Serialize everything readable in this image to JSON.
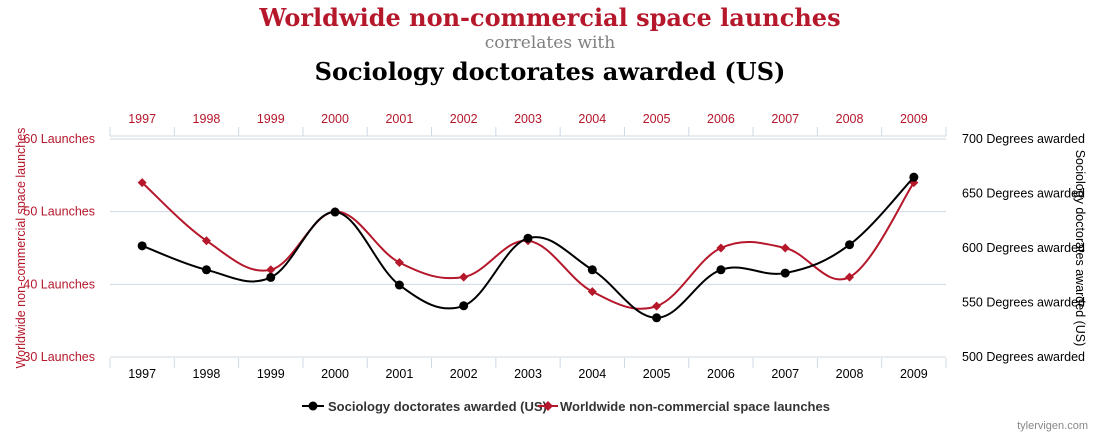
{
  "title_top": "Worldwide non-commercial space launches",
  "title_mid": "correlates with",
  "title_bottom": "Sociology doctorates awarded (US)",
  "watermark": "tylervigen.com",
  "colors": {
    "launches": "#b5172b",
    "doctorates": "#000000",
    "grid": "#cfd8e3",
    "mid_text": "#808080"
  },
  "chart_data": {
    "type": "line",
    "x": [
      "1997",
      "1998",
      "1999",
      "2000",
      "2001",
      "2002",
      "2003",
      "2004",
      "2005",
      "2006",
      "2007",
      "2008",
      "2009"
    ],
    "series": [
      {
        "name": "Sociology doctorates awarded (US)",
        "axis": "right",
        "color": "#000000",
        "marker": "circle",
        "values": [
          602,
          580,
          573,
          633,
          566,
          547,
          609,
          580,
          536,
          580,
          577,
          603,
          665
        ]
      },
      {
        "name": "Worldwide non-commercial space launches",
        "axis": "left",
        "color": "#b5172b",
        "marker": "diamond",
        "values": [
          54,
          46,
          42,
          50,
          43,
          41,
          46,
          39,
          37,
          45,
          45,
          41,
          54
        ]
      }
    ],
    "left_axis": {
      "label": "Worldwide non-commercial space launches",
      "ylim": [
        30,
        60
      ],
      "ticks": [
        30,
        40,
        50,
        60
      ],
      "tick_labels": [
        "30 Launches",
        "40 Launches",
        "50 Launches",
        "60 Launches"
      ]
    },
    "right_axis": {
      "label": "Sociology doctorates awarded (US)",
      "ylim": [
        500,
        700
      ],
      "ticks": [
        500,
        550,
        600,
        650,
        700
      ],
      "tick_labels": [
        "500 Degrees awarded",
        "550 Degrees awarded",
        "600 Degrees awarded",
        "650 Degrees awarded",
        "700 Degrees awarded"
      ]
    },
    "grid": true,
    "legend": "bottom-center"
  }
}
